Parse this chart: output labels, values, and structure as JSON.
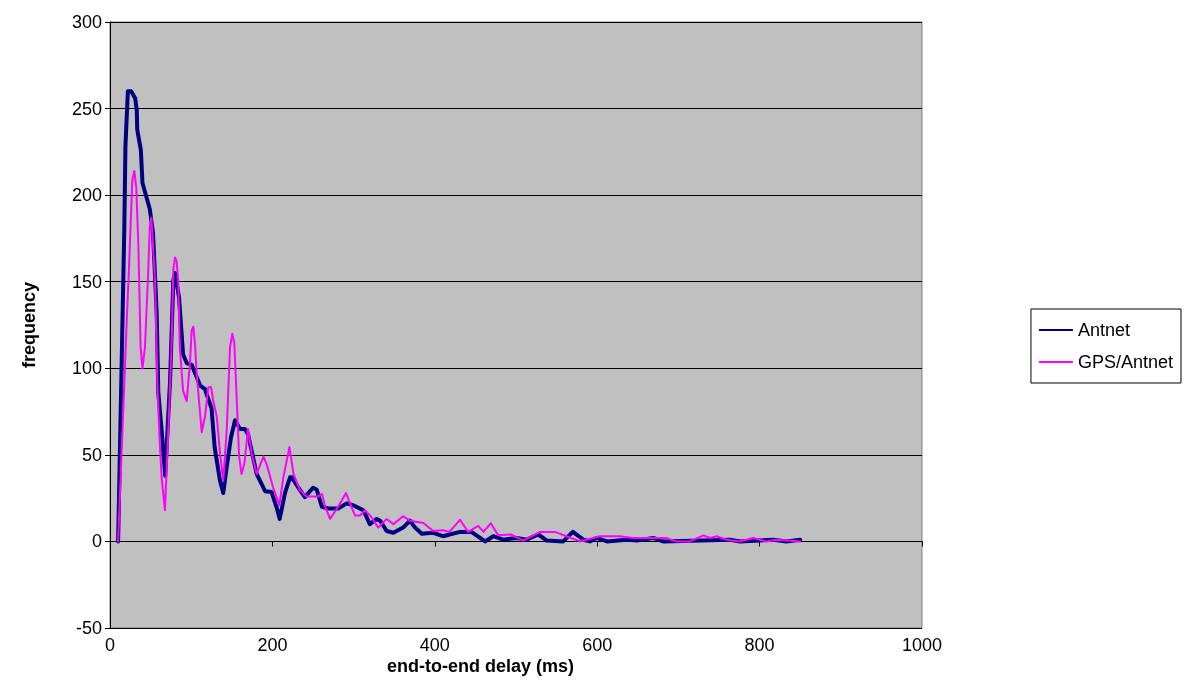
{
  "chart_data": {
    "type": "line",
    "xlabel": "end-to-end delay (ms)",
    "ylabel": "frequency",
    "xlim": [
      0,
      1000
    ],
    "xticks": [
      0,
      200,
      400,
      600,
      800,
      1000
    ],
    "ylim": [
      -50,
      300
    ],
    "yticks": [
      -50,
      0,
      50,
      100,
      150,
      200,
      250,
      300
    ],
    "grid": "y",
    "legend": "right",
    "marker": "none",
    "line_style": "solid",
    "series": [
      {
        "name": "Antnet",
        "color": "#000080",
        "x": [
          10,
          17.6,
          19,
          22,
          26,
          31,
          33,
          33.5,
          38,
          40,
          49,
          53,
          57.5,
          59.5,
          63.6,
          68,
          74,
          78,
          80,
          85,
          90,
          94.5,
          100.6,
          111,
          117,
          119,
          125,
          129,
          135.5,
          139.5,
          143.7,
          149,
          154,
          160,
          166,
          170,
          180.6,
          191,
          199,
          205,
          209,
          215.5,
          221.7,
          224,
          232,
          240,
          250,
          254.5,
          261,
          269,
          281,
          291.5,
          299,
          312,
          320,
          328.5,
          332.6,
          340.7,
          348.9,
          361,
          369.5,
          375.6,
          384,
          398,
          410,
          431,
          445,
          462,
          472,
          484,
          501,
          513,
          527.5,
          538,
          558,
          570,
          583,
          591,
          599,
          612,
          636,
          649,
          669,
          681,
          763.5,
          776,
          817,
          833,
          850
        ],
        "values": [
          0,
          180,
          228,
          260,
          260,
          256,
          249,
          238,
          226,
          207,
          192,
          178,
          132,
          86,
          64,
          38,
          93,
          151,
          155,
          141,
          108,
          103,
          102,
          90,
          88,
          85,
          77,
          54,
          35,
          28,
          43,
          60,
          70,
          65,
          65,
          62,
          39,
          29,
          28.5,
          20,
          13,
          28,
          37,
          37,
          31,
          25.6,
          31,
          30,
          20,
          19,
          19,
          22,
          21,
          18,
          10,
          13,
          12,
          6,
          5,
          8,
          12,
          8,
          4.5,
          5,
          3,
          5.5,
          5.5,
          0,
          3,
          1,
          2,
          1,
          4,
          0.5,
          0,
          5.5,
          1,
          0,
          2,
          0,
          1,
          0.5,
          2,
          0,
          1,
          0,
          1,
          0,
          1
        ]
      },
      {
        "name": "GPS/Antnet",
        "color": "#ff00ff",
        "x": [
          10,
          20.5,
          23.4,
          27.5,
          30,
          32.4,
          35,
          37.7,
          40,
          43,
          47,
          49,
          51,
          55.4,
          58.7,
          61.6,
          63.6,
          67.7,
          68.5,
          72.7,
          76,
          78,
          80,
          82,
          84,
          86,
          90,
          94.5,
          96.6,
          98.5,
          100.6,
          102.6,
          104.7,
          106.7,
          113,
          117,
          121,
          124.5,
          127,
          131.5,
          135.5,
          139.5,
          143.7,
          147.8,
          150.6,
          153,
          156,
          159,
          162,
          165.5,
          170,
          174.5,
          180.6,
          189,
          193,
          201,
          208.5,
          213.5,
          221,
          226,
          234,
          242,
          256.5,
          261,
          265,
          271,
          281,
          290.6,
          295.6,
          301.7,
          308,
          314,
          322,
          330.5,
          340.7,
          349,
          361,
          369.5,
          386,
          398,
          410,
          418,
          431,
          441,
          453.5,
          460,
          469,
          478,
          494,
          509,
          529.6,
          548,
          562,
          579,
          603,
          628,
          644,
          669,
          685,
          697,
          714,
          731,
          739,
          747,
          759,
          776,
          792,
          808.5,
          821,
          833,
          850
        ],
        "values": [
          0,
          126,
          158,
          209,
          214,
          204,
          170,
          112,
          100,
          112,
          155,
          182,
          187,
          151,
          86,
          54,
          37,
          18,
          18,
          74,
          116,
          157,
          164,
          162,
          151,
          112,
          87,
          81,
          93,
          103,
          122,
          124,
          114,
          97,
          63,
          72,
          89,
          89,
          81.5,
          72,
          51,
          35,
          64,
          112,
          120,
          115,
          83,
          49,
          39,
          45,
          65,
          51,
          39,
          49,
          44.5,
          31,
          21,
          37,
          54.5,
          39,
          29.5,
          26,
          26,
          27.5,
          20,
          13,
          20,
          28,
          22,
          15,
          15,
          18,
          14,
          8,
          13,
          10,
          14.5,
          12,
          10.6,
          6,
          6.5,
          5.5,
          12.5,
          5.5,
          9,
          5.5,
          10.5,
          3.5,
          4,
          0.5,
          5.5,
          5.5,
          3,
          0,
          3,
          3,
          2,
          2,
          2,
          0,
          0,
          3.5,
          2,
          3,
          1,
          0,
          2,
          0,
          1,
          0.5,
          0
        ]
      }
    ]
  }
}
